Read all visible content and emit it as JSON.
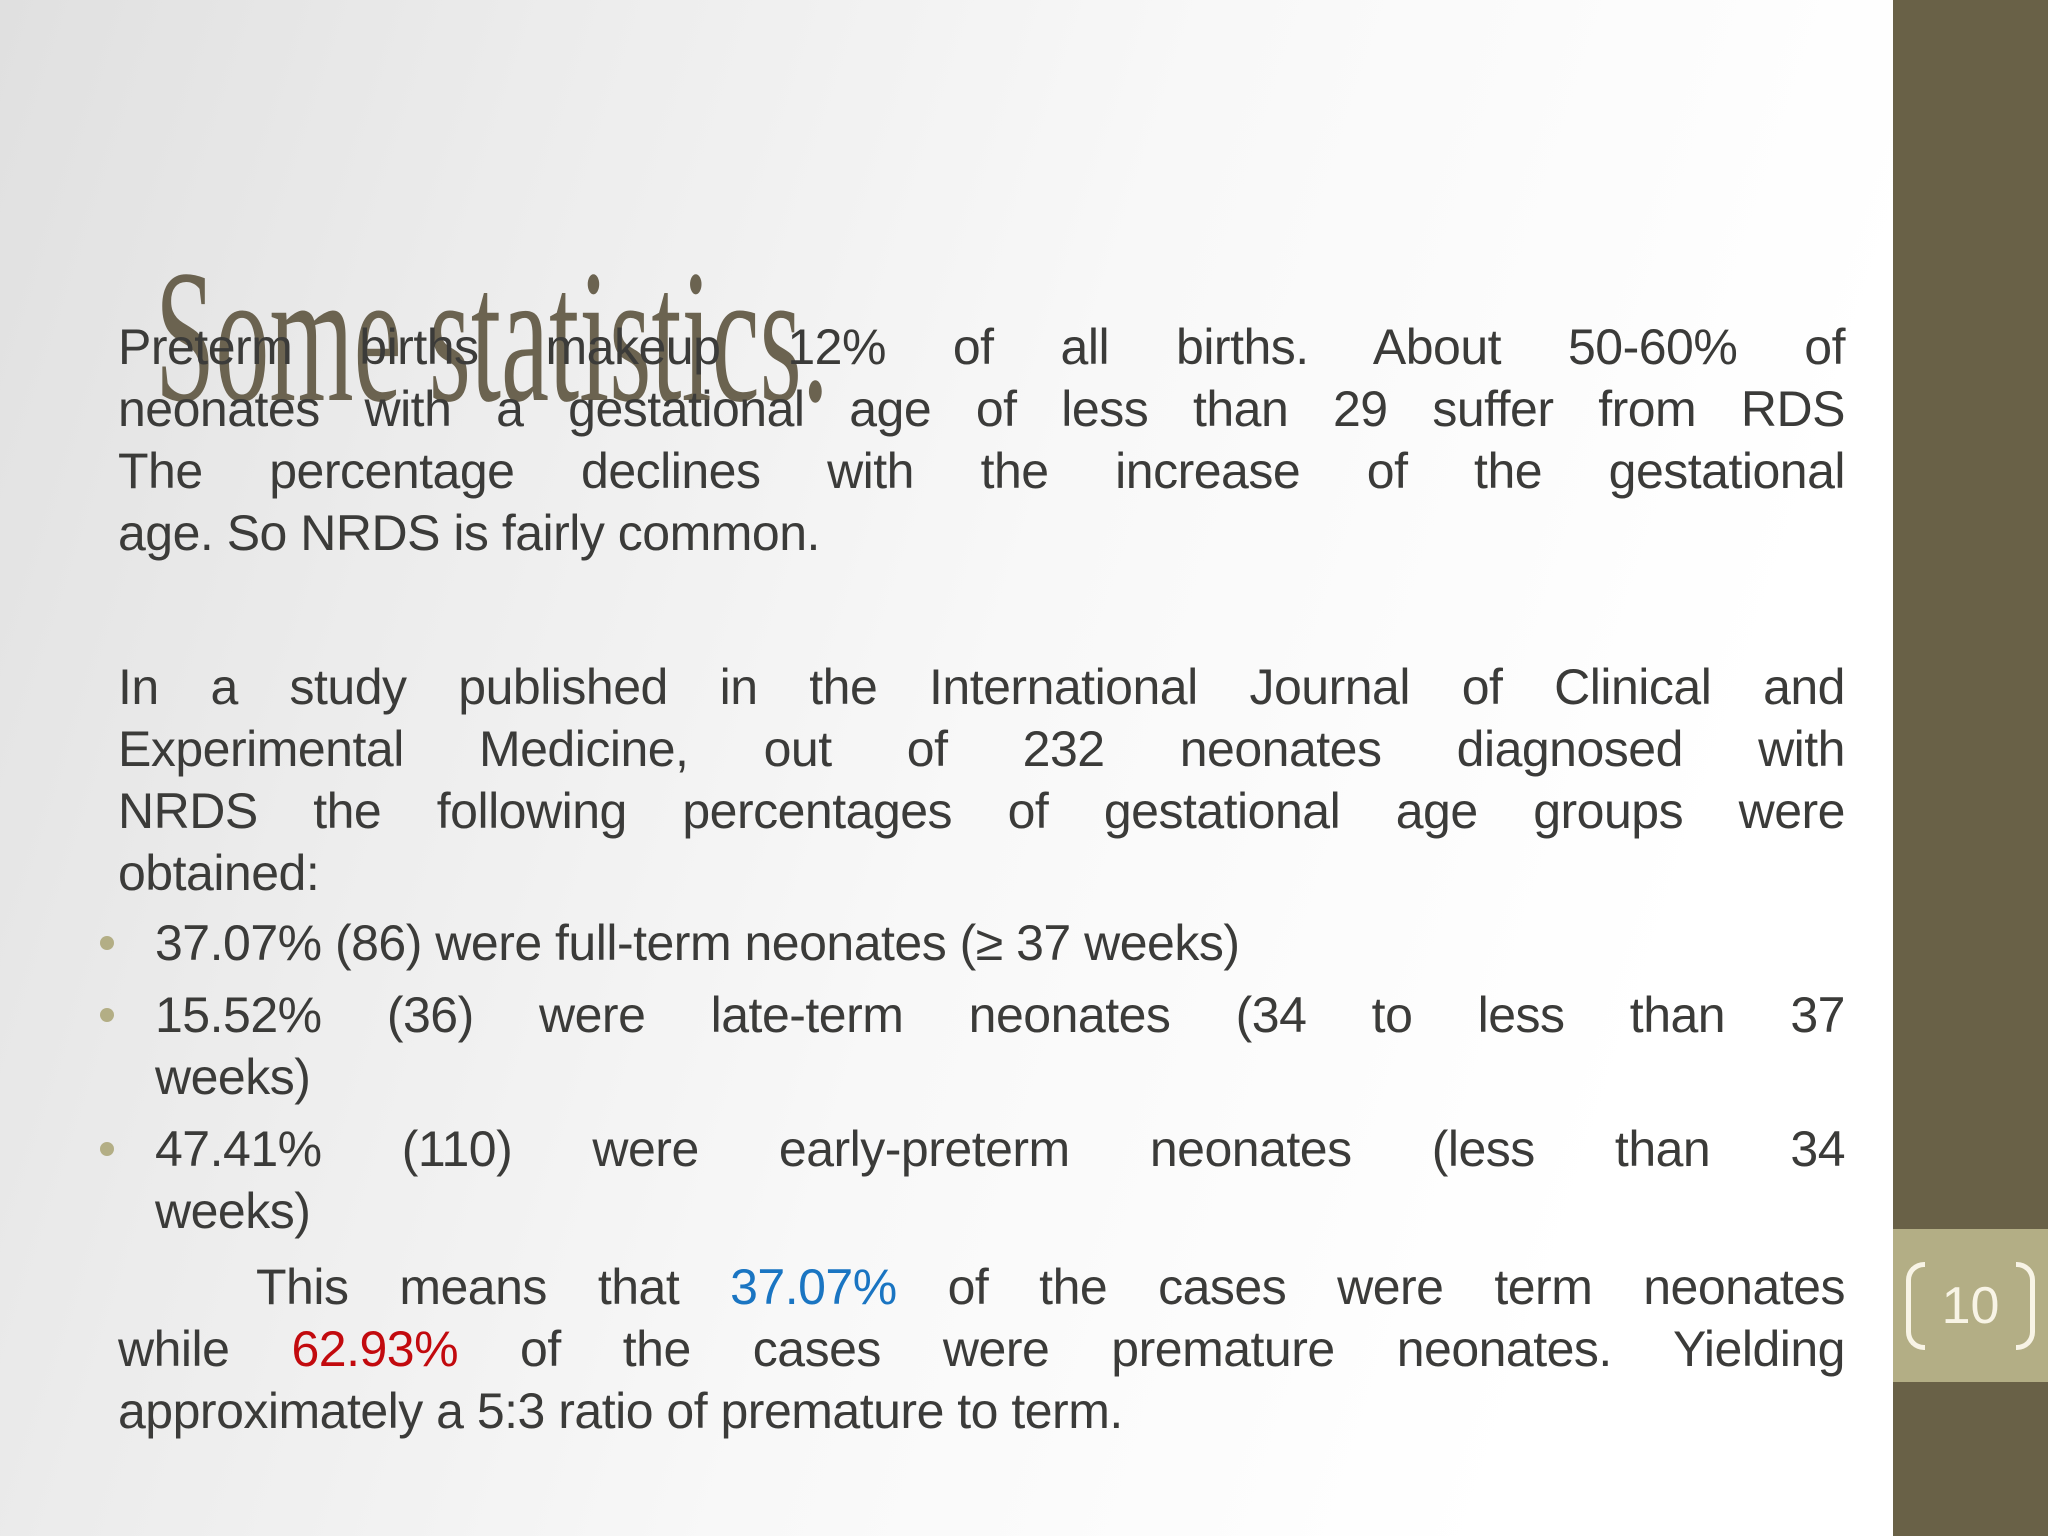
{
  "slide": {
    "title": "Some statistics.",
    "page_number": "10",
    "colors": {
      "title": "#6b6350",
      "body": "#3b3b39",
      "accent_blue": "#1a75c2",
      "accent_red": "#c20a0e",
      "band_dark": "#696147",
      "band_light": "#b3ae85",
      "page_number_text": "#f8f4e6",
      "bullet_dot": "#b3ae85"
    },
    "body": {
      "paragraph1": {
        "lines": [
          "Preterm births makeup 12% of all births. About 50-60% of",
          "neonates with a gestational age of less than 29 suffer from RDS",
          "The percentage declines with the increase of the gestational",
          "age. So NRDS is fairly common."
        ]
      },
      "paragraph2": {
        "lines": [
          "In a study published in the International Journal of Clinical and",
          "Experimental Medicine, out of 232 neonates diagnosed with",
          "NRDS the following percentages of gestational age groups were",
          "obtained:"
        ]
      },
      "bullets": [
        {
          "line1": "37.07% (86) were full-term neonates (≥ 37 weeks)"
        },
        {
          "line1": "15.52% (36) were late-term neonates (34 to less than 37",
          "line2": "weeks)"
        },
        {
          "line1": "47.41% (110) were early-preterm neonates (less than 34",
          "line2": "weeks)"
        }
      ],
      "paragraph3": {
        "line1": {
          "pre": "This means that ",
          "value": "37.07%",
          "post": " of the cases were term neonates"
        },
        "line2": {
          "pre": "while ",
          "value": "62.93%",
          "post": " of the cases were premature neonates. Yielding"
        },
        "line3": "approximately a 5:3 ratio of premature to term."
      }
    }
  }
}
